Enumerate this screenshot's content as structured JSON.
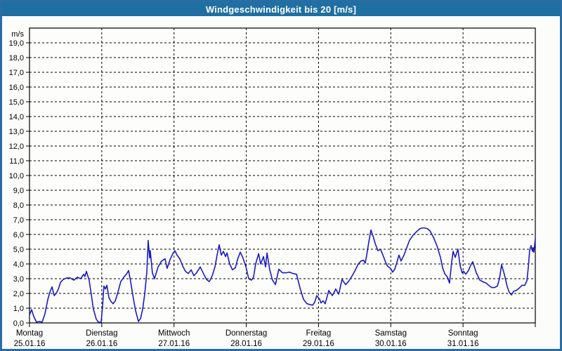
{
  "window": {
    "title": "Windgeschwindigkeit bis 20 [m/s]"
  },
  "colors": {
    "title_bar_bg": "#1f6fa2",
    "frame_border": "#2a6ca4",
    "background": "#fcfdfa",
    "plot_background": "#fdfdfb",
    "grid": "#000000",
    "axis": "#000000",
    "text": "#000000",
    "line": "#1a1ac4"
  },
  "chart_data": {
    "type": "line",
    "title": "Windgeschwindigkeit bis 20 [m/s]",
    "unit_label": "m/s",
    "ylabel": "m/s",
    "ylim": [
      0,
      20
    ],
    "y_tick_step": 1,
    "y_tick_labels": [
      "0,0",
      "1,0",
      "2,0",
      "3,0",
      "4,0",
      "5,0",
      "6,0",
      "7,0",
      "8,0",
      "9,0",
      "10,0",
      "11,0",
      "12,0",
      "13,0",
      "14,0",
      "15,0",
      "16,0",
      "17,0",
      "18,0",
      "19,0"
    ],
    "x_unit": "hours",
    "xlim": [
      0,
      168
    ],
    "grid": "dashed",
    "legend": "none",
    "x_ticks": [
      {
        "day": "Montag",
        "date": "25.01.16",
        "hour": 0
      },
      {
        "day": "Dienstag",
        "date": "26.01.16",
        "hour": 24
      },
      {
        "day": "Mittwoch",
        "date": "27.01.16",
        "hour": 48
      },
      {
        "day": "Donnerstag",
        "date": "28.01.16",
        "hour": 72
      },
      {
        "day": "Freitag",
        "date": "29.01.16",
        "hour": 96
      },
      {
        "day": "Samstag",
        "date": "30.01.16",
        "hour": 120
      },
      {
        "day": "Sonntag",
        "date": "31.01.16",
        "hour": 144
      }
    ],
    "tick_hours": [
      0,
      24,
      48,
      72,
      96,
      120,
      144,
      168
    ],
    "series": [
      {
        "name": "Windgeschwindigkeit",
        "color": "#1a1ac4",
        "points": [
          [
            0,
            0.55
          ],
          [
            0.7,
            0.9
          ],
          [
            1.4,
            0.45
          ],
          [
            2.3,
            0.05
          ],
          [
            3.3,
            0.1
          ],
          [
            4.2,
            0.05
          ],
          [
            5.1,
            0.6
          ],
          [
            6.1,
            1.6
          ],
          [
            6.8,
            2.1
          ],
          [
            7.5,
            2.45
          ],
          [
            8.2,
            1.85
          ],
          [
            8.9,
            2.0
          ],
          [
            9.6,
            2.3
          ],
          [
            10.3,
            2.75
          ],
          [
            11.2,
            2.95
          ],
          [
            12.4,
            3.05
          ],
          [
            13.5,
            3.05
          ],
          [
            14.7,
            2.9
          ],
          [
            15.9,
            3.1
          ],
          [
            17,
            3.0
          ],
          [
            18,
            3.3
          ],
          [
            18.4,
            3.15
          ],
          [
            18.9,
            3.5
          ],
          [
            19.8,
            2.9
          ],
          [
            20.5,
            1.95
          ],
          [
            21.2,
            0.95
          ],
          [
            22.2,
            0.25
          ],
          [
            22.9,
            0.05
          ],
          [
            23.8,
            0.05
          ],
          [
            24.3,
            1.2
          ],
          [
            24.7,
            2.5
          ],
          [
            25.2,
            2.3
          ],
          [
            25.7,
            2.55
          ],
          [
            26.4,
            1.7
          ],
          [
            27.1,
            1.45
          ],
          [
            27.8,
            1.3
          ],
          [
            28.5,
            1.5
          ],
          [
            29.4,
            2.1
          ],
          [
            30.3,
            2.8
          ],
          [
            31.3,
            3.1
          ],
          [
            32.2,
            3.3
          ],
          [
            32.9,
            3.55
          ],
          [
            33.6,
            2.8
          ],
          [
            34.3,
            1.9
          ],
          [
            35.2,
            0.85
          ],
          [
            36.2,
            0.1
          ],
          [
            36.9,
            0.3
          ],
          [
            37.6,
            0.95
          ],
          [
            38.3,
            2.0
          ],
          [
            39,
            3.5
          ],
          [
            39.4,
            5.6
          ],
          [
            39.9,
            4.4
          ],
          [
            40.1,
            4.9
          ],
          [
            40.8,
            3.4
          ],
          [
            41.5,
            3.0
          ],
          [
            42.7,
            3.8
          ],
          [
            43.9,
            4.2
          ],
          [
            45,
            4.35
          ],
          [
            45.7,
            3.7
          ],
          [
            46.7,
            4.3
          ],
          [
            47.6,
            4.7
          ],
          [
            48.3,
            4.9
          ],
          [
            49,
            4.6
          ],
          [
            49.9,
            4.35
          ],
          [
            50.9,
            3.85
          ],
          [
            51.8,
            3.5
          ],
          [
            52.7,
            3.35
          ],
          [
            53.7,
            3.6
          ],
          [
            54.6,
            3.2
          ],
          [
            55.5,
            3.4
          ],
          [
            56.7,
            3.8
          ],
          [
            57.9,
            3.3
          ],
          [
            58.8,
            2.95
          ],
          [
            59.7,
            2.8
          ],
          [
            60.7,
            3.2
          ],
          [
            61.6,
            3.8
          ],
          [
            62.3,
            4.6
          ],
          [
            63,
            5.3
          ],
          [
            63.7,
            4.6
          ],
          [
            64.4,
            4.85
          ],
          [
            65.1,
            4.5
          ],
          [
            65.6,
            4.75
          ],
          [
            66.5,
            4.0
          ],
          [
            67.4,
            3.6
          ],
          [
            68.4,
            3.75
          ],
          [
            69.1,
            4.3
          ],
          [
            70,
            4.8
          ],
          [
            70.9,
            4.4
          ],
          [
            71.9,
            3.8
          ],
          [
            72.8,
            3.0
          ],
          [
            73.7,
            2.9
          ],
          [
            74.4,
            3.1
          ],
          [
            75.1,
            4.0
          ],
          [
            76.1,
            4.7
          ],
          [
            76.8,
            4.0
          ],
          [
            77.7,
            4.5
          ],
          [
            78.4,
            3.8
          ],
          [
            78.9,
            4.75
          ],
          [
            79.8,
            3.6
          ],
          [
            80.7,
            2.9
          ],
          [
            81.7,
            2.6
          ],
          [
            82.8,
            3.65
          ],
          [
            84,
            3.4
          ],
          [
            85.2,
            3.4
          ],
          [
            86.3,
            3.45
          ],
          [
            87.5,
            3.35
          ],
          [
            88.7,
            3.3
          ],
          [
            89.8,
            2.4
          ],
          [
            91,
            1.6
          ],
          [
            92.2,
            1.3
          ],
          [
            93.1,
            1.25
          ],
          [
            94,
            1.2
          ],
          [
            94.7,
            1.4
          ],
          [
            95.4,
            1.85
          ],
          [
            96.4,
            1.6
          ],
          [
            96.8,
            1.35
          ],
          [
            97.5,
            1.5
          ],
          [
            98.2,
            1.3
          ],
          [
            99.4,
            2.2
          ],
          [
            100.6,
            1.85
          ],
          [
            101.7,
            2.3
          ],
          [
            102.7,
            1.95
          ],
          [
            103.8,
            2.95
          ],
          [
            105,
            2.6
          ],
          [
            105.9,
            2.8
          ],
          [
            106.9,
            3.1
          ],
          [
            108,
            3.5
          ],
          [
            109.2,
            4.0
          ],
          [
            110.1,
            4.2
          ],
          [
            111,
            4.25
          ],
          [
            111.5,
            4.05
          ],
          [
            112,
            4.6
          ],
          [
            112.7,
            5.5
          ],
          [
            113.4,
            6.3
          ],
          [
            114.1,
            5.9
          ],
          [
            114.8,
            5.4
          ],
          [
            115.7,
            4.9
          ],
          [
            116.6,
            5.0
          ],
          [
            117.3,
            4.65
          ],
          [
            118.3,
            4.1
          ],
          [
            118.9,
            3.85
          ],
          [
            119.9,
            3.7
          ],
          [
            120.6,
            3.45
          ],
          [
            121.3,
            3.65
          ],
          [
            122,
            4.1
          ],
          [
            122.7,
            4.6
          ],
          [
            123.4,
            4.2
          ],
          [
            124.4,
            4.6
          ],
          [
            125.3,
            5.1
          ],
          [
            126.2,
            5.6
          ],
          [
            127.4,
            5.95
          ],
          [
            128.6,
            6.2
          ],
          [
            129.7,
            6.4
          ],
          [
            130.9,
            6.45
          ],
          [
            132.1,
            6.4
          ],
          [
            133,
            6.25
          ],
          [
            134.2,
            5.8
          ],
          [
            135.3,
            5.25
          ],
          [
            136.5,
            4.45
          ],
          [
            137.2,
            3.75
          ],
          [
            137.9,
            3.35
          ],
          [
            138.8,
            3.1
          ],
          [
            139.5,
            2.7
          ],
          [
            140.2,
            4.1
          ],
          [
            140.7,
            4.85
          ],
          [
            141.4,
            4.45
          ],
          [
            142.3,
            5.0
          ],
          [
            143,
            3.9
          ],
          [
            143.7,
            3.4
          ],
          [
            144.2,
            3.5
          ],
          [
            144.9,
            3.3
          ],
          [
            145.8,
            3.55
          ],
          [
            146.5,
            3.9
          ],
          [
            147.2,
            4.15
          ],
          [
            148.4,
            3.4
          ],
          [
            149.6,
            2.9
          ],
          [
            150.5,
            2.8
          ],
          [
            151.7,
            2.7
          ],
          [
            152.8,
            2.5
          ],
          [
            153.5,
            2.4
          ],
          [
            154.5,
            2.4
          ],
          [
            155.4,
            2.5
          ],
          [
            156.1,
            3.0
          ],
          [
            156.8,
            3.95
          ],
          [
            157.7,
            3.3
          ],
          [
            158.7,
            2.45
          ],
          [
            159.4,
            2.05
          ],
          [
            160.1,
            1.9
          ],
          [
            160.8,
            2.15
          ],
          [
            161.7,
            2.2
          ],
          [
            162.6,
            2.35
          ],
          [
            163.6,
            2.55
          ],
          [
            164.5,
            2.55
          ],
          [
            165.2,
            2.85
          ],
          [
            165.7,
            3.8
          ],
          [
            166.1,
            4.9
          ],
          [
            166.6,
            5.25
          ],
          [
            167.1,
            4.85
          ],
          [
            167.3,
            5.1
          ],
          [
            167.5,
            4.8
          ],
          [
            168,
            5.7
          ]
        ]
      }
    ]
  }
}
